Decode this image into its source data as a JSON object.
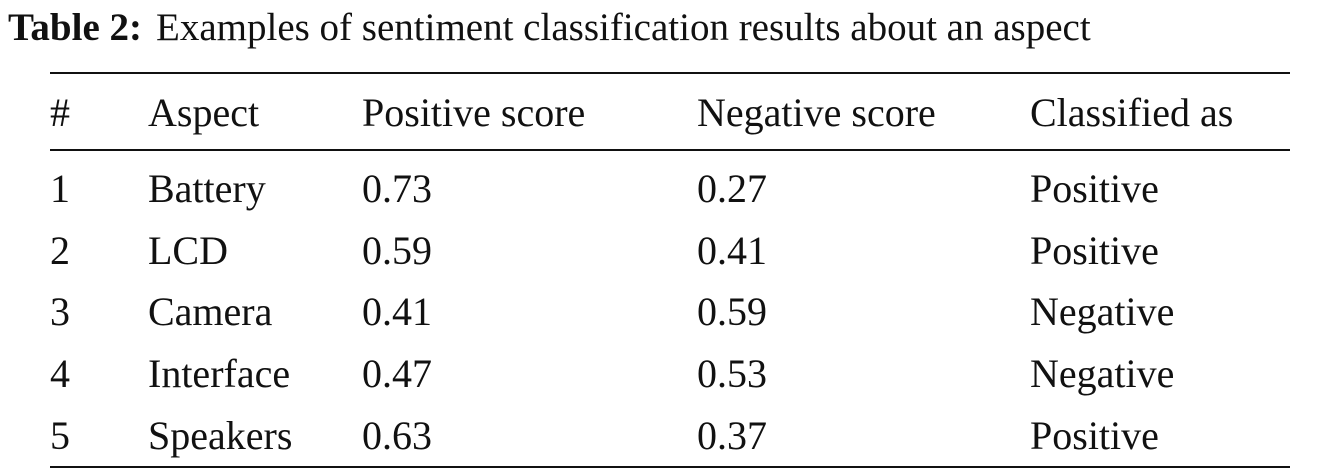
{
  "caption": {
    "label": "Table 2:",
    "text": "Examples of sentiment classification results about an aspect"
  },
  "table": {
    "header": [
      "#",
      "Aspect",
      "Positive score",
      "Negative score",
      "Classified as"
    ],
    "rows": [
      [
        "1",
        "Battery",
        "0.73",
        "0.27",
        "Positive"
      ],
      [
        "2",
        "LCD",
        "0.59",
        "0.41",
        "Positive"
      ],
      [
        "3",
        "Camera",
        "0.41",
        "0.59",
        "Negative"
      ],
      [
        "4",
        "Interface",
        "0.47",
        "0.53",
        "Negative"
      ],
      [
        "5",
        "Speakers",
        "0.63",
        "0.37",
        "Positive"
      ]
    ]
  }
}
